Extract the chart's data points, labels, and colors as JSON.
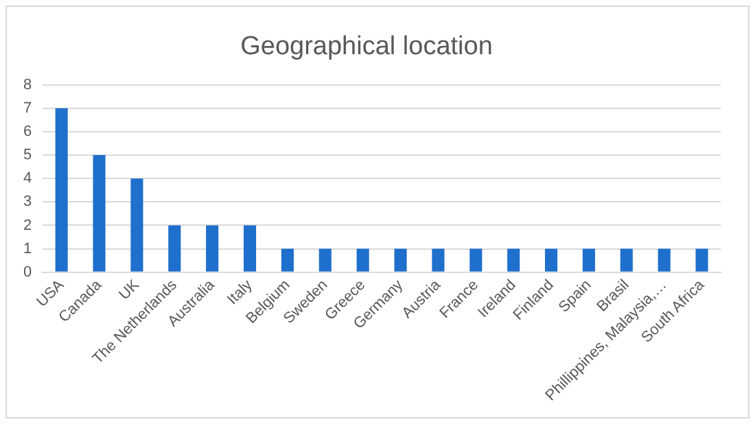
{
  "chart_data": {
    "type": "bar",
    "title": "Geographical location",
    "categories": [
      "USA",
      "Canada",
      "UK",
      "The Netherlands",
      "Australia",
      "Italy",
      "Belgium",
      "Sweden",
      "Greece",
      "Germany",
      "Austria",
      "France",
      "Ireland",
      "Finland",
      "Spain",
      "Brasil",
      "Phillippines, Malaysia,…",
      "South Africa"
    ],
    "values": [
      7,
      5,
      4,
      2,
      2,
      2,
      1,
      1,
      1,
      1,
      1,
      1,
      1,
      1,
      1,
      1,
      1,
      1
    ],
    "color": "#1f6fcc",
    "ylim": [
      0,
      8
    ],
    "yticks": [
      0,
      1,
      2,
      3,
      4,
      5,
      6,
      7,
      8
    ],
    "grid": "y"
  }
}
